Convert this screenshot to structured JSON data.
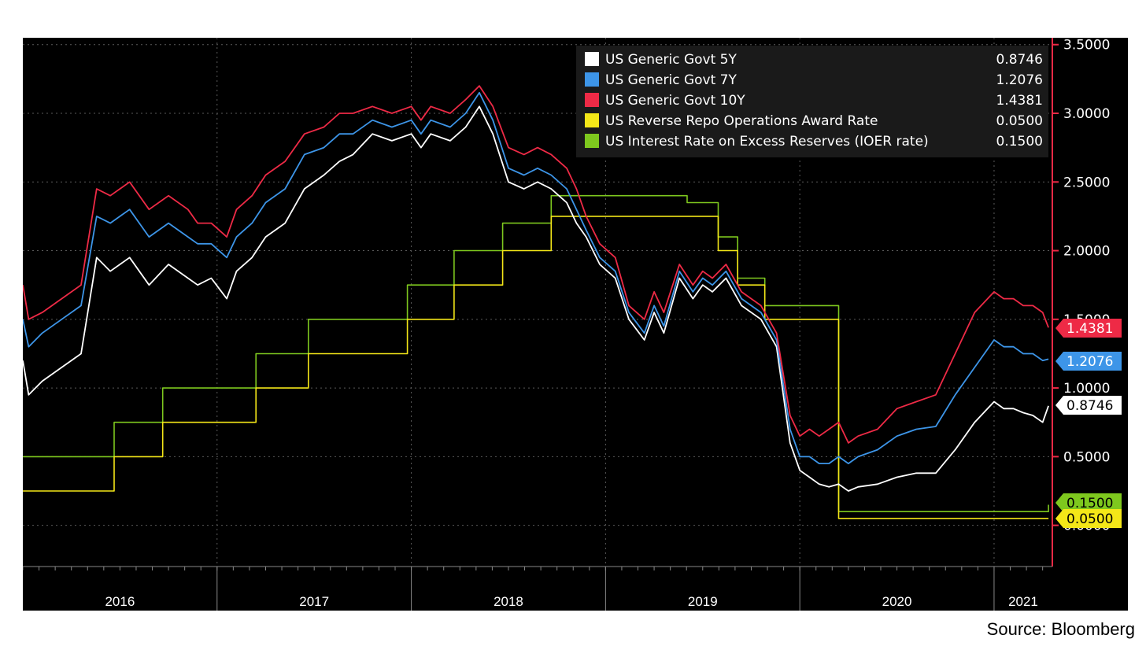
{
  "source": "Source: Bloomberg",
  "chart_data": {
    "type": "line",
    "x_tick_labels": [
      "2016",
      "2017",
      "2018",
      "2019",
      "2020",
      "2021"
    ],
    "y_tick_labels": [
      "0.0000",
      "0.5000",
      "1.0000",
      "1.5000",
      "2.0000",
      "2.5000",
      "3.0000",
      "3.5000"
    ],
    "ylim": [
      -0.3,
      3.55
    ],
    "xlim": [
      2016.0,
      2021.3
    ],
    "grid": true,
    "legend_position": "top-right",
    "series": [
      {
        "name": "US Generic Govt 5Y",
        "value_label": "0.8746",
        "color": "#ffffff",
        "step": false,
        "x": [
          2016.0,
          2016.03,
          2016.1,
          2016.2,
          2016.3,
          2016.38,
          2016.45,
          2016.5,
          2016.55,
          2016.65,
          2016.75,
          2016.85,
          2016.9,
          2016.97,
          2017.05,
          2017.1,
          2017.18,
          2017.25,
          2017.35,
          2017.45,
          2017.55,
          2017.63,
          2017.7,
          2017.8,
          2017.9,
          2018.0,
          2018.05,
          2018.1,
          2018.2,
          2018.28,
          2018.35,
          2018.42,
          2018.5,
          2018.58,
          2018.65,
          2018.72,
          2018.8,
          2018.85,
          2018.9,
          2018.97,
          2019.05,
          2019.12,
          2019.2,
          2019.25,
          2019.3,
          2019.38,
          2019.45,
          2019.5,
          2019.55,
          2019.62,
          2019.7,
          2019.8,
          2019.88,
          2019.95,
          2020.0,
          2020.05,
          2020.1,
          2020.15,
          2020.2,
          2020.25,
          2020.3,
          2020.4,
          2020.5,
          2020.6,
          2020.7,
          2020.8,
          2020.9,
          2021.0,
          2021.05,
          2021.1,
          2021.15,
          2021.2,
          2021.25,
          2021.28
        ],
        "values": [
          1.2,
          0.95,
          1.05,
          1.15,
          1.25,
          1.95,
          1.85,
          1.9,
          1.95,
          1.75,
          1.9,
          1.8,
          1.75,
          1.8,
          1.65,
          1.85,
          1.95,
          2.1,
          2.2,
          2.45,
          2.55,
          2.65,
          2.7,
          2.85,
          2.8,
          2.85,
          2.75,
          2.85,
          2.8,
          2.9,
          3.05,
          2.85,
          2.5,
          2.45,
          2.5,
          2.45,
          2.35,
          2.2,
          2.1,
          1.9,
          1.8,
          1.5,
          1.35,
          1.55,
          1.4,
          1.8,
          1.65,
          1.75,
          1.7,
          1.8,
          1.6,
          1.5,
          1.3,
          0.6,
          0.4,
          0.35,
          0.3,
          0.28,
          0.3,
          0.25,
          0.28,
          0.3,
          0.35,
          0.38,
          0.38,
          0.55,
          0.75,
          0.9,
          0.85,
          0.85,
          0.82,
          0.8,
          0.75,
          0.87
        ]
      },
      {
        "name": "US Generic Govt 7Y",
        "value_label": "1.2076",
        "color": "#3d95e8",
        "step": false,
        "x": [
          2016.0,
          2016.03,
          2016.1,
          2016.2,
          2016.3,
          2016.38,
          2016.45,
          2016.5,
          2016.55,
          2016.65,
          2016.75,
          2016.85,
          2016.9,
          2016.97,
          2017.05,
          2017.1,
          2017.18,
          2017.25,
          2017.35,
          2017.45,
          2017.55,
          2017.63,
          2017.7,
          2017.8,
          2017.9,
          2018.0,
          2018.05,
          2018.1,
          2018.2,
          2018.28,
          2018.35,
          2018.42,
          2018.5,
          2018.58,
          2018.65,
          2018.72,
          2018.8,
          2018.85,
          2018.9,
          2018.97,
          2019.05,
          2019.12,
          2019.2,
          2019.25,
          2019.3,
          2019.38,
          2019.45,
          2019.5,
          2019.55,
          2019.62,
          2019.7,
          2019.8,
          2019.88,
          2019.95,
          2020.0,
          2020.05,
          2020.1,
          2020.15,
          2020.2,
          2020.25,
          2020.3,
          2020.4,
          2020.5,
          2020.6,
          2020.7,
          2020.8,
          2020.9,
          2021.0,
          2021.05,
          2021.1,
          2021.15,
          2021.2,
          2021.25,
          2021.28
        ],
        "values": [
          1.5,
          1.3,
          1.4,
          1.5,
          1.6,
          2.25,
          2.2,
          2.25,
          2.3,
          2.1,
          2.2,
          2.1,
          2.05,
          2.05,
          1.95,
          2.1,
          2.2,
          2.35,
          2.45,
          2.7,
          2.75,
          2.85,
          2.85,
          2.95,
          2.9,
          2.95,
          2.85,
          2.95,
          2.9,
          3.0,
          3.15,
          2.95,
          2.6,
          2.55,
          2.6,
          2.55,
          2.45,
          2.3,
          2.15,
          1.95,
          1.85,
          1.55,
          1.4,
          1.6,
          1.45,
          1.85,
          1.7,
          1.8,
          1.75,
          1.85,
          1.65,
          1.55,
          1.35,
          0.7,
          0.5,
          0.5,
          0.45,
          0.45,
          0.5,
          0.45,
          0.5,
          0.55,
          0.65,
          0.7,
          0.72,
          0.95,
          1.15,
          1.35,
          1.3,
          1.3,
          1.25,
          1.25,
          1.2,
          1.21
        ]
      },
      {
        "name": "US Generic Govt 10Y",
        "value_label": "1.4381",
        "color": "#ee2a46",
        "step": false,
        "x": [
          2016.0,
          2016.03,
          2016.1,
          2016.2,
          2016.3,
          2016.38,
          2016.45,
          2016.5,
          2016.55,
          2016.65,
          2016.75,
          2016.85,
          2016.9,
          2016.97,
          2017.05,
          2017.1,
          2017.18,
          2017.25,
          2017.35,
          2017.45,
          2017.55,
          2017.63,
          2017.7,
          2017.8,
          2017.9,
          2018.0,
          2018.05,
          2018.1,
          2018.2,
          2018.28,
          2018.35,
          2018.42,
          2018.5,
          2018.58,
          2018.65,
          2018.72,
          2018.8,
          2018.85,
          2018.9,
          2018.97,
          2019.05,
          2019.12,
          2019.2,
          2019.25,
          2019.3,
          2019.38,
          2019.45,
          2019.5,
          2019.55,
          2019.62,
          2019.7,
          2019.8,
          2019.88,
          2019.95,
          2020.0,
          2020.05,
          2020.1,
          2020.15,
          2020.2,
          2020.25,
          2020.3,
          2020.4,
          2020.5,
          2020.6,
          2020.7,
          2020.8,
          2020.9,
          2021.0,
          2021.05,
          2021.1,
          2021.15,
          2021.2,
          2021.25,
          2021.28
        ],
        "values": [
          1.75,
          1.5,
          1.55,
          1.65,
          1.75,
          2.45,
          2.4,
          2.45,
          2.5,
          2.3,
          2.4,
          2.3,
          2.2,
          2.2,
          2.1,
          2.3,
          2.4,
          2.55,
          2.65,
          2.85,
          2.9,
          3.0,
          3.0,
          3.05,
          3.0,
          3.05,
          2.95,
          3.05,
          3.0,
          3.1,
          3.2,
          3.05,
          2.75,
          2.7,
          2.75,
          2.7,
          2.6,
          2.45,
          2.25,
          2.05,
          1.95,
          1.6,
          1.5,
          1.7,
          1.55,
          1.9,
          1.75,
          1.85,
          1.8,
          1.9,
          1.7,
          1.6,
          1.4,
          0.8,
          0.65,
          0.7,
          0.65,
          0.7,
          0.75,
          0.6,
          0.65,
          0.7,
          0.85,
          0.9,
          0.95,
          1.25,
          1.55,
          1.7,
          1.65,
          1.65,
          1.6,
          1.6,
          1.55,
          1.44
        ]
      },
      {
        "name": "US Reverse Repo Operations Award Rate",
        "value_label": "0.0500",
        "color": "#f4e718",
        "step": true,
        "x": [
          2016.0,
          2016.47,
          2016.72,
          2017.2,
          2017.47,
          2017.98,
          2018.22,
          2018.47,
          2018.72,
          2019.58,
          2019.68,
          2019.82,
          2020.2,
          2021.28
        ],
        "values": [
          0.25,
          0.5,
          0.75,
          1.0,
          1.25,
          1.5,
          1.75,
          2.0,
          2.25,
          2.0,
          1.75,
          1.5,
          0.05,
          0.05
        ]
      },
      {
        "name": "US Interest Rate on Excess Reserves (IOER rate)",
        "value_label": "0.1500",
        "color": "#7ec81e",
        "step": true,
        "x": [
          2016.0,
          2016.47,
          2016.72,
          2017.2,
          2017.47,
          2017.98,
          2018.22,
          2018.47,
          2018.72,
          2019.42,
          2019.58,
          2019.68,
          2019.82,
          2020.2,
          2021.28
        ],
        "values": [
          0.5,
          0.75,
          1.0,
          1.25,
          1.5,
          1.75,
          2.0,
          2.2,
          2.4,
          2.35,
          2.1,
          1.8,
          1.6,
          0.1,
          0.15
        ]
      }
    ]
  }
}
